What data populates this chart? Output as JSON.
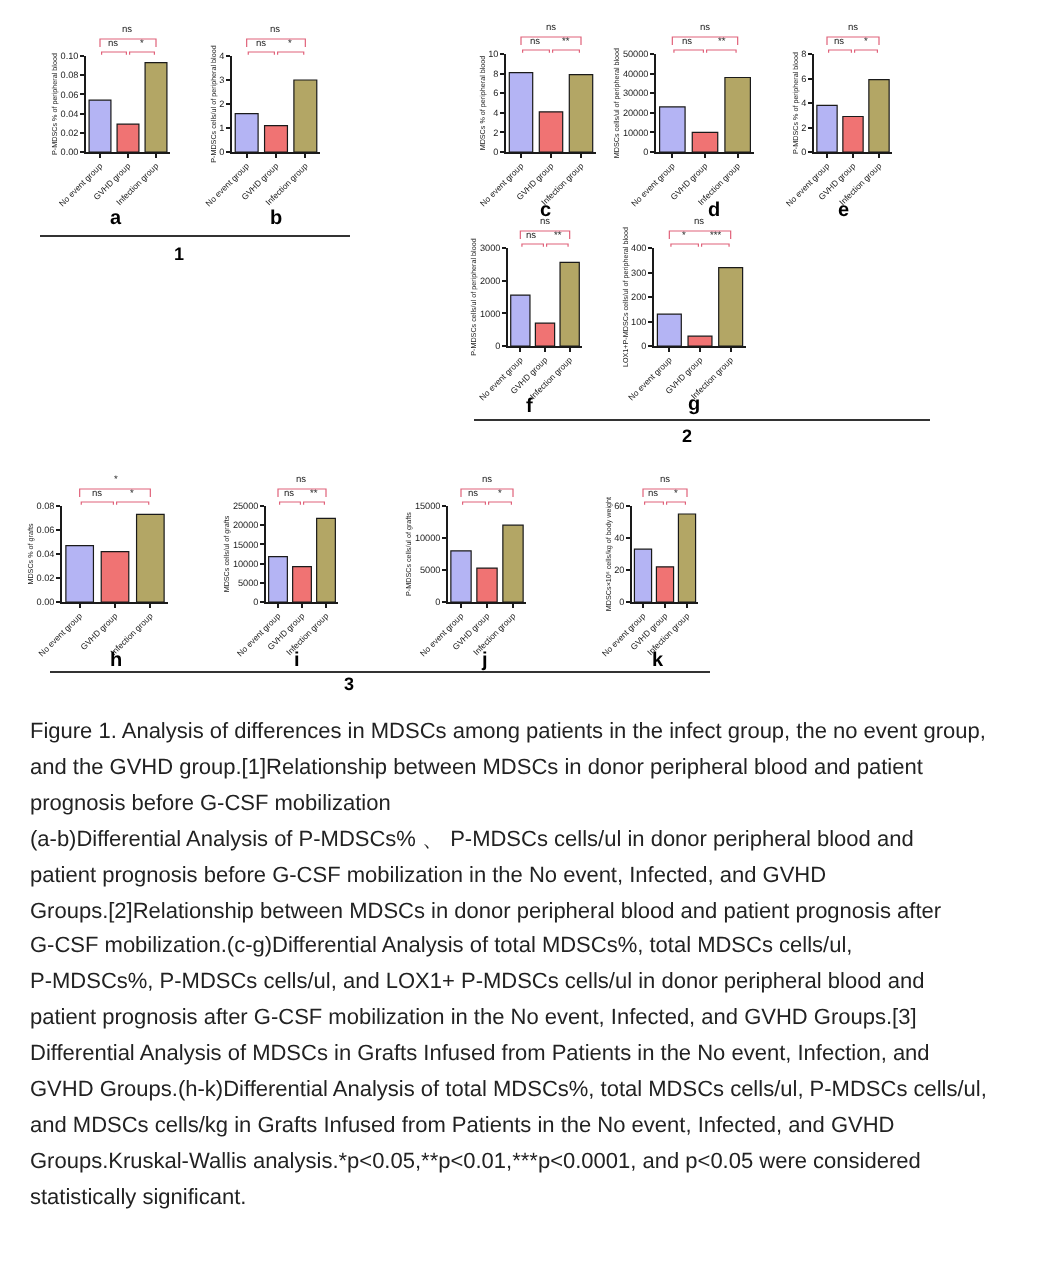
{
  "chart_data": [
    {
      "type": "bar",
      "categories": [
        "No event group",
        "GVHD group",
        "Infection group"
      ],
      "values": [
        0.054,
        0.029,
        0.093
      ],
      "colors": [
        "#b4b4f4",
        "#f07373",
        "#b3a665"
      ],
      "ylabel": "P-MDSCs % of peripheral blood",
      "ylim": [
        0,
        0.1
      ],
      "yticks": [
        {
          "value": 0,
          "label": "0.00"
        },
        {
          "value": 0.02,
          "label": "0.02"
        },
        {
          "value": 0.04,
          "label": "0.04"
        },
        {
          "value": 0.06,
          "label": "0.06"
        },
        {
          "value": 0.08,
          "label": "0.08"
        },
        {
          "value": 0.1,
          "label": "0.10"
        }
      ],
      "xlabel": "a",
      "annotations": [
        "ns",
        "ns",
        "*"
      ]
    },
    {
      "type": "bar",
      "categories": [
        "No event group",
        "GVHD group",
        "Infection group"
      ],
      "values": [
        1.6,
        1.1,
        3.0
      ],
      "colors": [
        "#b4b4f4",
        "#f07373",
        "#b3a665"
      ],
      "ylabel": "P-MDSCs cells/ul of peripheral blood",
      "ylim": [
        0,
        4
      ],
      "yticks": [
        0,
        1,
        2,
        3,
        4
      ],
      "xlabel": "b",
      "annotations": [
        "ns",
        "ns",
        "*",
        "1"
      ]
    },
    {
      "type": "bar",
      "categories": [
        "No event group",
        "GVHD group",
        "Infection group"
      ],
      "values": [
        8.1,
        4.1,
        7.9
      ],
      "colors": [
        "#b4b4f4",
        "#f07373",
        "#b3a665"
      ],
      "ylabel": "MDSCs % of peripheral blood",
      "ylim": [
        0,
        10
      ],
      "yticks": [
        0,
        2,
        4,
        6,
        8,
        10
      ],
      "xlabel": "c",
      "annotations": [
        "ns",
        "ns",
        "**"
      ]
    },
    {
      "type": "bar",
      "categories": [
        "No event group",
        "GVHD group",
        "Infection group"
      ],
      "values": [
        23000,
        10000,
        38000
      ],
      "colors": [
        "#b4b4f4",
        "#f07373",
        "#b3a665"
      ],
      "ylabel": "MDSCs cells/ul of peripheral blood",
      "ylim": [
        0,
        50000
      ],
      "yticks": [
        0,
        10000,
        20000,
        30000,
        40000,
        50000
      ],
      "xlabel": "d",
      "annotations": [
        "ns",
        "ns",
        "**"
      ]
    },
    {
      "type": "bar",
      "categories": [
        "No event group",
        "GVHD group",
        "Infection group"
      ],
      "values": [
        3.8,
        2.9,
        5.9
      ],
      "colors": [
        "#b4b4f4",
        "#f07373",
        "#b3a665"
      ],
      "ylabel": "P-MDSCs % of peripheral blood",
      "ylim": [
        0,
        8
      ],
      "yticks": [
        0,
        2,
        4,
        6,
        8
      ],
      "xlabel": "e",
      "annotations": [
        "ns",
        "ns",
        "*"
      ]
    },
    {
      "type": "bar",
      "categories": [
        "No event group",
        "GVHD group",
        "Infection group"
      ],
      "values": [
        1560,
        700,
        2560
      ],
      "colors": [
        "#b4b4f4",
        "#f07373",
        "#b3a665"
      ],
      "ylabel": "P-MDSCs cells/ul of peripheral blood",
      "ylim": [
        0,
        3000
      ],
      "yticks": [
        0,
        1000,
        2000,
        3000
      ],
      "xlabel": "f",
      "annotations": [
        "ns",
        "ns",
        "**"
      ]
    },
    {
      "type": "bar",
      "categories": [
        "No event group",
        "GVHD group",
        "Infection group"
      ],
      "values": [
        130,
        40,
        320
      ],
      "colors": [
        "#b4b4f4",
        "#f07373",
        "#b3a665"
      ],
      "ylabel": "LOX1+P-MDSCs cells/ul of peripheral blood",
      "ylim": [
        0,
        400
      ],
      "yticks": [
        0,
        100,
        200,
        300,
        400
      ],
      "xlabel": "g",
      "annotations": [
        "ns",
        "*",
        "***",
        "2"
      ]
    },
    {
      "type": "bar",
      "categories": [
        "No event group",
        "GVHD group",
        "Infection group"
      ],
      "values": [
        0.047,
        0.042,
        0.073
      ],
      "colors": [
        "#b4b4f4",
        "#f07373",
        "#b3a665"
      ],
      "ylabel": "MDSCs % of grafts",
      "ylim": [
        0,
        0.08
      ],
      "yticks": [
        {
          "value": 0,
          "label": "0.00"
        },
        {
          "value": 0.02,
          "label": "0.02"
        },
        {
          "value": 0.04,
          "label": "0.04"
        },
        {
          "value": 0.06,
          "label": "0.06"
        },
        {
          "value": 0.08,
          "label": "0.08"
        }
      ],
      "xlabel": "h",
      "annotations": [
        "*",
        "ns",
        "*"
      ]
    },
    {
      "type": "bar",
      "categories": [
        "No event group",
        "GVHD group",
        "Infection group"
      ],
      "values": [
        11800,
        9200,
        21800
      ],
      "colors": [
        "#b4b4f4",
        "#f07373",
        "#b3a665"
      ],
      "ylabel": "MDSCs cells/ul of grafts",
      "ylim": [
        0,
        25000
      ],
      "yticks": [
        0,
        5000,
        10000,
        15000,
        20000,
        25000
      ],
      "xlabel": "i",
      "annotations": [
        "ns",
        "ns",
        "**"
      ]
    },
    {
      "type": "bar",
      "categories": [
        "No event group",
        "GVHD group",
        "Infection group"
      ],
      "values": [
        8000,
        5300,
        12000
      ],
      "colors": [
        "#b4b4f4",
        "#f07373",
        "#b3a665"
      ],
      "ylabel": "P-MDSCs cells/ul of grafts",
      "ylim": [
        0,
        15000
      ],
      "yticks": [
        0,
        5000,
        10000,
        15000
      ],
      "xlabel": "j",
      "annotations": [
        "ns",
        "ns",
        "*"
      ]
    },
    {
      "type": "bar",
      "categories": [
        "No event group",
        "GVHD group",
        "Infection group"
      ],
      "values": [
        33,
        22,
        55
      ],
      "colors": [
        "#b4b4f4",
        "#f07373",
        "#b3a665"
      ],
      "ylabel": "MDSCs×10⁶ cells/kg of body weight",
      "ylim": [
        0,
        60
      ],
      "yticks": [
        0,
        20,
        40,
        60
      ],
      "xlabel": "k",
      "annotations": [
        "ns",
        "ns",
        "*",
        "3"
      ]
    },
    {
      "type": "other",
      "annotations": [
        "Figure 1. Analysis of differences in MDSCs among patients in the infect group, the no event group,\nand the GVHD group.[1]Relationship between MDSCs in donor peripheral blood and patient\nprognosis before G-CSF mobilization\n(a-b)Differential Analysis of P-MDSCs% 、 P-MDSCs cells/ul in donor peripheral blood and\npatient prognosis before G-CSF mobilization in the No event, Infected, and GVHD\nGroups.[2]Relationship between MDSCs in donor peripheral blood and patient prognosis after\nG-CSF mobilization.(c-g)Differential Analysis of total MDSCs%, total MDSCs cells/ul,\nP-MDSCs%, P-MDSCs cells/ul, and LOX1+ P-MDSCs cells/ul in donor peripheral blood and\npatient prognosis after G-CSF mobilization in the No event, Infected, and GVHD Groups.[3]\nDifferential Analysis of MDSCs in Grafts Infused from Patients in the No event, Infection, and\nGVHD Groups.(h-k)Differential Analysis of total MDSCs%, total MDSCs cells/ul, P-MDSCs cells/ul,\nand MDSCs cells/kg in Grafts Infused from Patients in the No event, Infected, and GVHD\nGroups.Kruskal-Wallis analysis.*p<0.05,**p<0.01,***p<0.0001, and p<0.05 were considered\nstatistically significant."
      ]
    }
  ]
}
